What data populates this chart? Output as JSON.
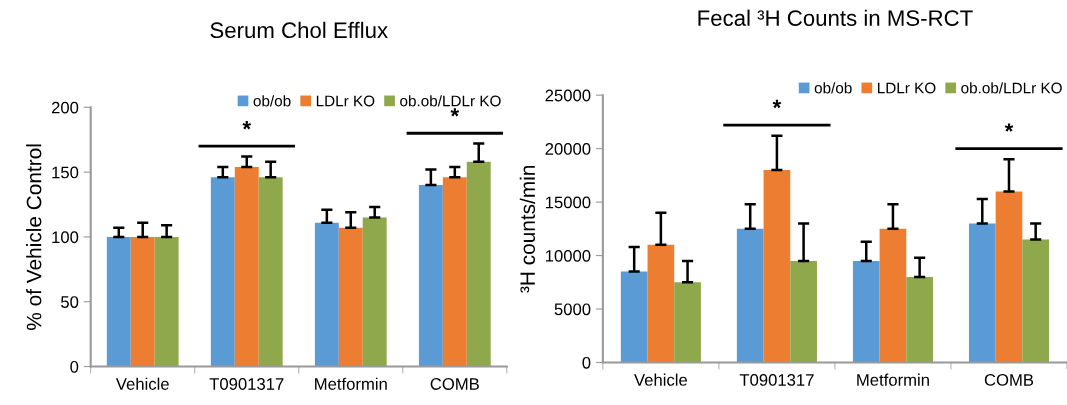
{
  "chart_data": [
    {
      "type": "bar",
      "title": "Serum Chol Efflux",
      "ylabel": "% of Vehicle Control",
      "categories": [
        "Vehicle",
        "T0901317",
        "Metformin",
        "COMB"
      ],
      "ylim": [
        0,
        200
      ],
      "yticks": [
        0,
        50,
        100,
        150,
        200
      ],
      "grid": false,
      "legend": "top right",
      "annotations": [
        "*",
        "*"
      ],
      "series": [
        {
          "name": "ob/ob",
          "color": "#5b9bd5",
          "values": [
            100,
            146,
            111,
            140
          ],
          "errors": [
            [
              100,
              107
            ],
            [
              146,
              154
            ],
            [
              111,
              121
            ],
            [
              140,
              152
            ]
          ]
        },
        {
          "name": "LDLr KO",
          "color": "#ed7d31",
          "values": [
            100,
            154,
            107,
            146
          ],
          "errors": [
            [
              100,
              111
            ],
            [
              154,
              162
            ],
            [
              107,
              119
            ],
            [
              146,
              154
            ]
          ]
        },
        {
          "name": "ob.ob/LDLr KO",
          "color": "#8ea84b",
          "values": [
            100,
            146,
            115,
            158
          ],
          "errors": [
            [
              100,
              109
            ],
            [
              146,
              158
            ],
            [
              115,
              123
            ],
            [
              158,
              172
            ]
          ]
        }
      ]
    },
    {
      "type": "bar",
      "title": "Fecal ³H Counts in MS-RCT",
      "ylabel": "³H counts/min",
      "categories": [
        "Vehicle",
        "T0901317",
        "Metformin",
        "COMB"
      ],
      "ylim": [
        0,
        25000
      ],
      "yticks": [
        0,
        5000,
        10000,
        15000,
        20000,
        25000
      ],
      "grid": false,
      "legend": "top right",
      "annotations": [
        "*",
        "*"
      ],
      "series": [
        {
          "name": "ob/ob",
          "color": "#5b9bd5",
          "values": [
            8500,
            12500,
            9500,
            13000
          ],
          "errors": [
            [
              8500,
              10800
            ],
            [
              12500,
              14800
            ],
            [
              9500,
              11300
            ],
            [
              13000,
              15300
            ]
          ]
        },
        {
          "name": "LDLr KO",
          "color": "#ed7d31",
          "values": [
            11000,
            18000,
            12500,
            16000
          ],
          "errors": [
            [
              11000,
              14000
            ],
            [
              18000,
              21200
            ],
            [
              12500,
              14800
            ],
            [
              16000,
              19000
            ]
          ]
        },
        {
          "name": "ob.ob/LDLr KO",
          "color": "#8ea84b",
          "values": [
            7500,
            9500,
            8000,
            11500
          ],
          "errors": [
            [
              7500,
              9500
            ],
            [
              9500,
              13000
            ],
            [
              8000,
              9800
            ],
            [
              11500,
              13000
            ]
          ]
        }
      ]
    }
  ]
}
